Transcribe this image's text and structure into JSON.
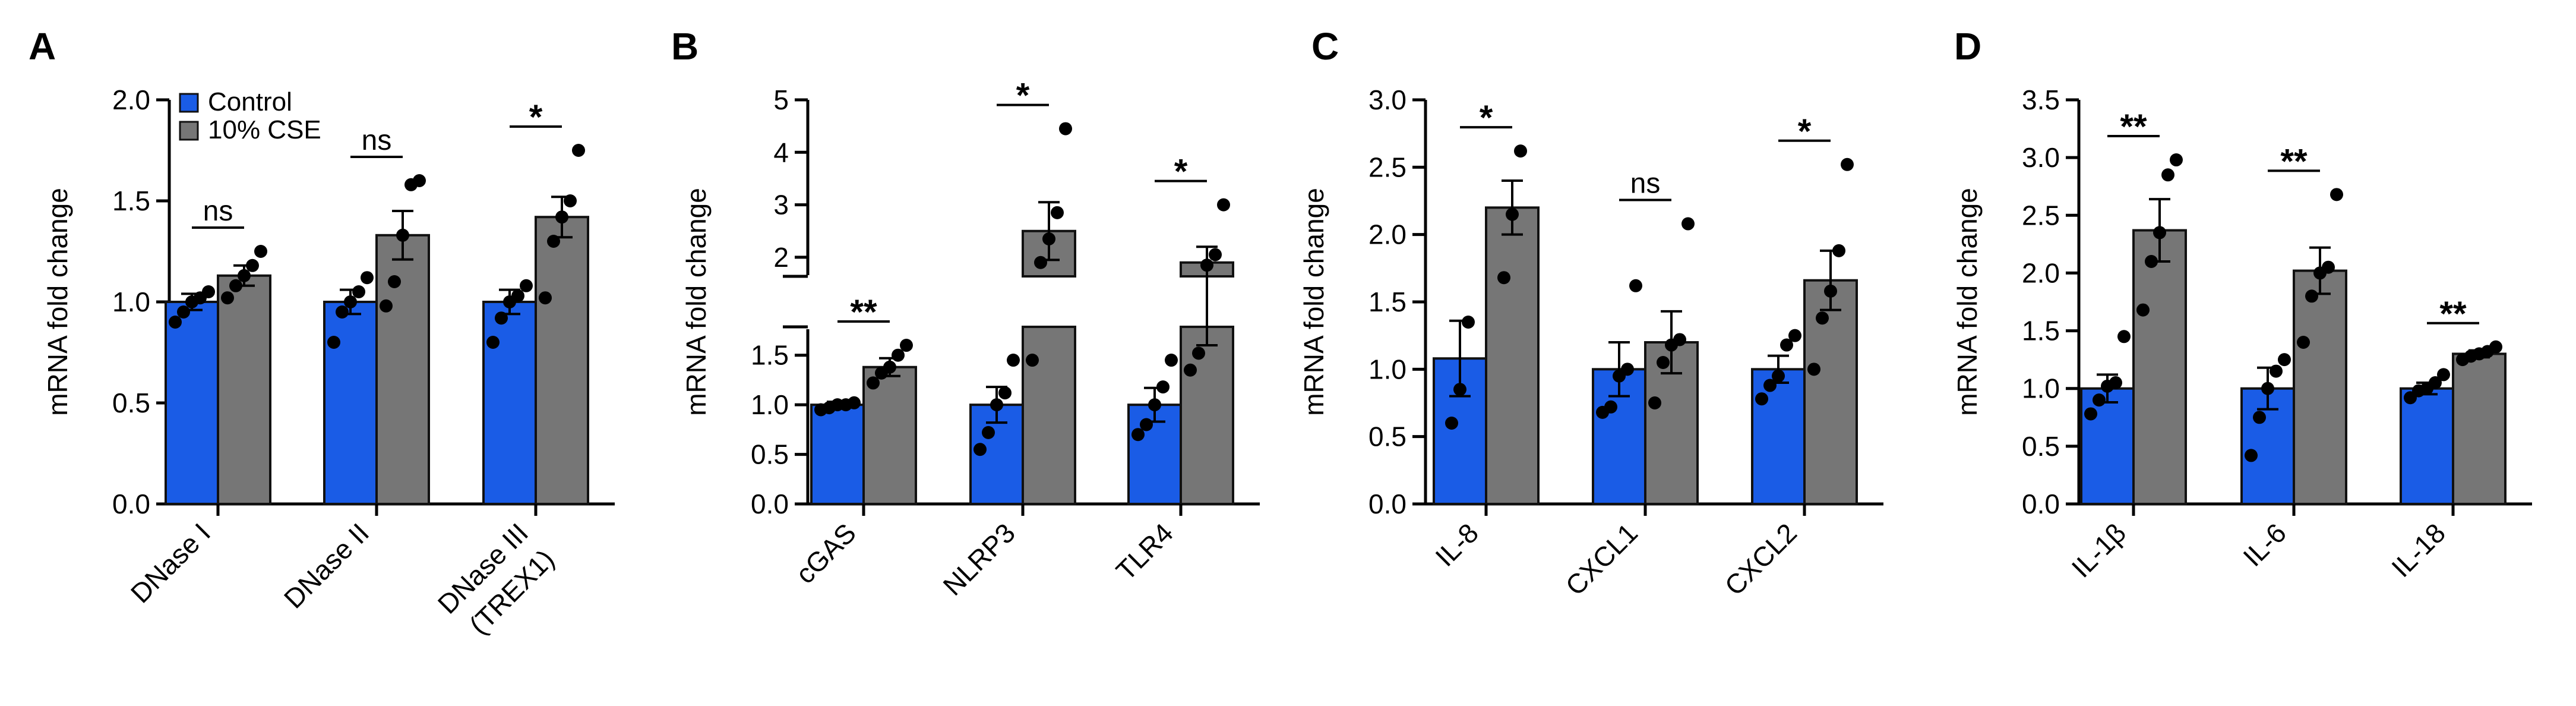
{
  "colors": {
    "control": "#1a5ce6",
    "cse": "#767676",
    "axis": "#000000",
    "bar_stroke": "#111111"
  },
  "legend": {
    "control_label": "Control",
    "cse_label": "10% CSE"
  },
  "chart_data": [
    {
      "panel": "A",
      "type": "bar",
      "ylabel": "mRNA fold change",
      "ylim": [
        0,
        2.0
      ],
      "yticks": [
        "0.0",
        "0.5",
        "1.0",
        "1.5",
        "2.0"
      ],
      "categories": [
        [
          "DNase I"
        ],
        [
          "DNase II"
        ],
        [
          "DNase III",
          "(TREX1)"
        ]
      ],
      "significance": [
        "ns",
        "ns",
        "*"
      ],
      "series": [
        {
          "name": "Control",
          "values": [
            1.0,
            1.0,
            1.0
          ],
          "sem": [
            0.04,
            0.06,
            0.06
          ],
          "points": [
            [
              0.9,
              0.95,
              1.0,
              1.02,
              1.05
            ],
            [
              0.8,
              0.95,
              1.0,
              1.05,
              1.12
            ],
            [
              0.8,
              0.92,
              1.0,
              1.03,
              1.08
            ]
          ]
        },
        {
          "name": "10% CSE",
          "values": [
            1.13,
            1.33,
            1.42
          ],
          "sem": [
            0.05,
            0.12,
            0.1
          ],
          "points": [
            [
              1.02,
              1.08,
              1.13,
              1.18,
              1.25
            ],
            [
              0.98,
              1.1,
              1.33,
              1.58,
              1.6
            ],
            [
              1.02,
              1.3,
              1.42,
              1.5,
              1.75
            ]
          ]
        }
      ]
    },
    {
      "panel": "B",
      "type": "bar",
      "ylabel": "mRNA fold change",
      "ylim": [
        0,
        5
      ],
      "yticks": [
        "0.0",
        "0.5",
        "1.0",
        "1.5",
        "2",
        "3",
        "4",
        "5"
      ],
      "categories": [
        [
          "cGAS"
        ],
        [
          "NLRP3"
        ],
        [
          "TLR4"
        ]
      ],
      "significance": [
        "**",
        "*",
        "*"
      ],
      "series": [
        {
          "name": "Control",
          "values": [
            1.0,
            1.0,
            1.0
          ],
          "sem": [
            0.03,
            0.18,
            0.17
          ],
          "points": [
            [
              0.95,
              0.97,
              1.0,
              1.0,
              1.02
            ],
            [
              0.55,
              0.72,
              1.0,
              1.12,
              1.45
            ],
            [
              0.7,
              0.8,
              1.0,
              1.18,
              1.45
            ]
          ]
        },
        {
          "name": "10% CSE",
          "values": [
            1.38,
            2.5,
            1.9
          ],
          "sem": [
            0.09,
            0.55,
            0.3
          ],
          "points": [
            [
              1.22,
              1.32,
              1.38,
              1.5,
              1.6
            ],
            [
              1.45,
              1.9,
              2.35,
              2.85,
              4.45
            ],
            [
              1.35,
              1.52,
              1.85,
              2.05,
              3.0
            ]
          ]
        }
      ]
    },
    {
      "panel": "C",
      "type": "bar",
      "ylabel": "mRNA fold change",
      "ylim": [
        0,
        3.0
      ],
      "yticks": [
        "0.0",
        "0.5",
        "1.0",
        "1.5",
        "2.0",
        "2.5",
        "3.0"
      ],
      "categories": [
        [
          "IL-8"
        ],
        [
          "CXCL1"
        ],
        [
          "CXCL2"
        ]
      ],
      "significance": [
        "*",
        "ns",
        "*"
      ],
      "series": [
        {
          "name": "Control",
          "values": [
            1.08,
            1.0,
            1.0
          ],
          "sem": [
            0.28,
            0.2,
            0.1
          ],
          "points": [
            [
              0.6,
              0.85,
              1.35
            ],
            [
              0.68,
              0.72,
              0.95,
              1.0,
              1.62
            ],
            [
              0.78,
              0.88,
              0.95,
              1.18,
              1.25
            ]
          ]
        },
        {
          "name": "10% CSE",
          "values": [
            2.2,
            1.2,
            1.66
          ],
          "sem": [
            0.2,
            0.23,
            0.22
          ],
          "points": [
            [
              1.68,
              2.15,
              2.62
            ],
            [
              0.75,
              1.05,
              1.18,
              1.22,
              2.08
            ],
            [
              1.0,
              1.38,
              1.58,
              1.88,
              2.52
            ]
          ]
        }
      ]
    },
    {
      "panel": "D",
      "type": "bar",
      "ylabel": "mRNA fold change",
      "ylim": [
        0,
        3.5
      ],
      "yticks": [
        "0.0",
        "0.5",
        "1.0",
        "1.5",
        "2.0",
        "2.5",
        "3.0",
        "3.5"
      ],
      "categories": [
        [
          "IL-1β"
        ],
        [
          "IL-6"
        ],
        [
          "IL-18"
        ]
      ],
      "significance": [
        "**",
        "**",
        "**"
      ],
      "series": [
        {
          "name": "Control",
          "values": [
            1.0,
            1.0,
            1.0
          ],
          "sem": [
            0.12,
            0.18,
            0.05
          ],
          "points": [
            [
              0.78,
              0.9,
              1.02,
              1.05,
              1.45
            ],
            [
              0.42,
              0.75,
              1.0,
              1.15,
              1.25
            ],
            [
              0.92,
              0.98,
              1.0,
              1.05,
              1.12
            ]
          ]
        },
        {
          "name": "10% CSE",
          "values": [
            2.37,
            2.02,
            1.3
          ],
          "sem": [
            0.27,
            0.2,
            0.03
          ],
          "points": [
            [
              1.68,
              2.1,
              2.35,
              2.85,
              2.98
            ],
            [
              1.4,
              1.8,
              2.0,
              2.05,
              2.68
            ],
            [
              1.25,
              1.28,
              1.3,
              1.32,
              1.36
            ]
          ]
        }
      ]
    }
  ]
}
